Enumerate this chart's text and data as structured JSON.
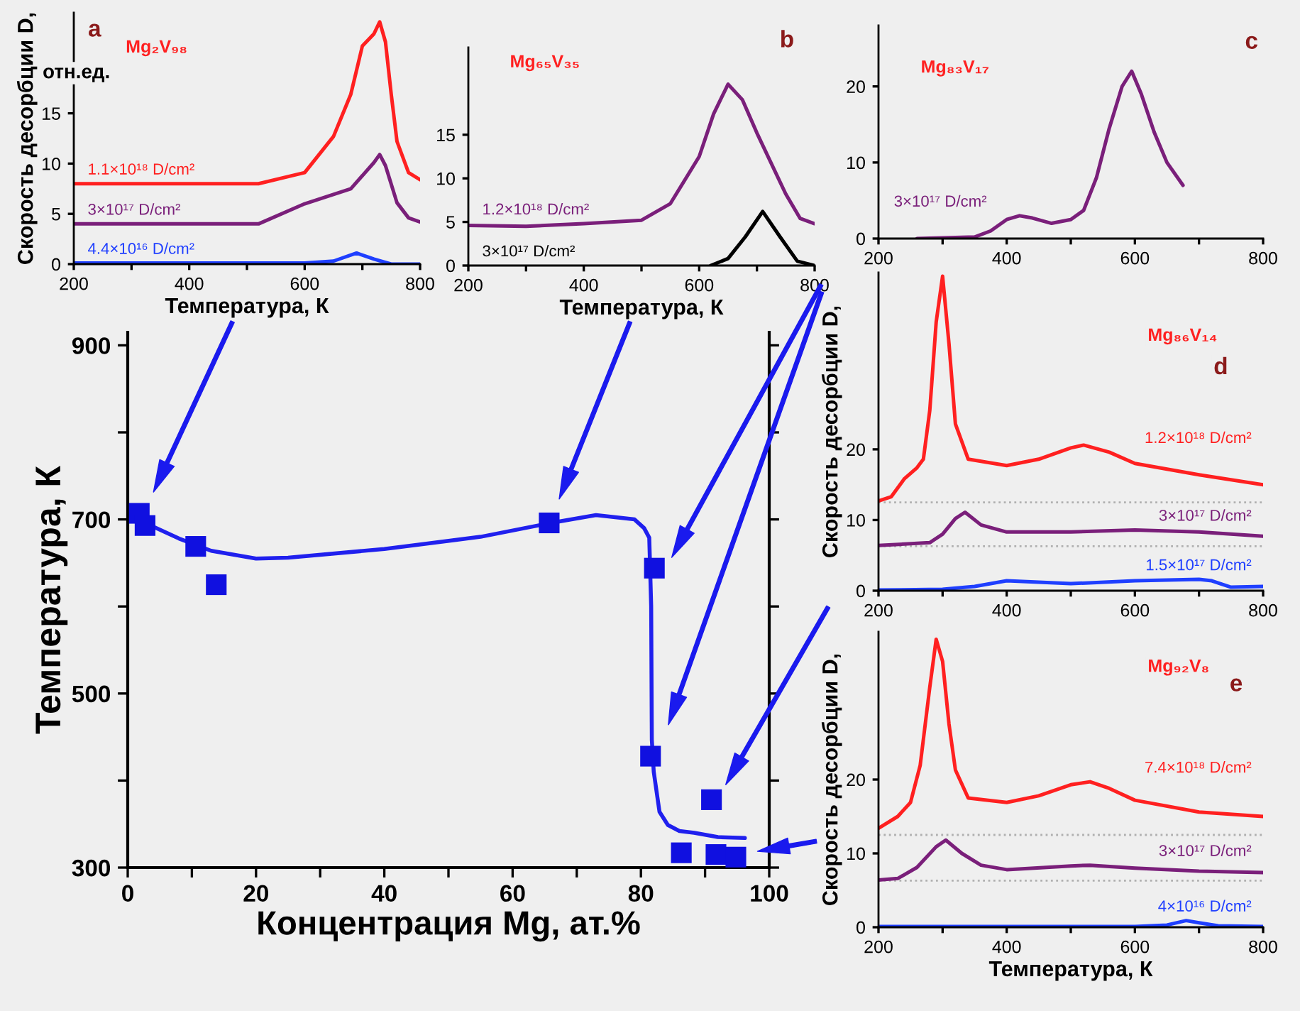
{
  "chart_data": [
    {
      "type": "line",
      "xlabel": "Температура, К",
      "ylabel": "Скорость десорбции D,",
      "annotations": [
        "a",
        "Mg₂V₉₈",
        "отн.ед."
      ],
      "xlim": [
        200,
        800
      ],
      "ylim": [
        0,
        25
      ],
      "xticks": [
        200,
        {
          "value": 300,
          "label": null
        },
        400,
        {
          "value": 500,
          "label": null
        },
        600,
        {
          "value": 700,
          "label": null
        },
        800
      ],
      "yticks": [
        0,
        5,
        10,
        15
      ],
      "series": [
        {
          "name": "1.1×10¹⁸ D/cm²",
          "color": "#ff2020",
          "x": [
            200,
            520,
            600,
            650,
            680,
            700,
            720,
            730,
            740,
            750,
            760,
            780,
            800
          ],
          "values": [
            8,
            8,
            9.1,
            12.7,
            16.9,
            21.7,
            22.9,
            24.1,
            22.1,
            16.9,
            12.2,
            9.1,
            8.4
          ]
        },
        {
          "name": "3×10¹⁷ D/cm²",
          "color": "#7a1f7a",
          "x": [
            200,
            520,
            600,
            680,
            720,
            730,
            740,
            760,
            780,
            800
          ],
          "values": [
            4,
            4,
            6,
            7.5,
            10.1,
            10.9,
            9.8,
            6.1,
            4.6,
            4.2
          ]
        },
        {
          "name": "4.4×10¹⁶ D/cm²",
          "color": "#1f3fff",
          "x": [
            200,
            600,
            650,
            690,
            720,
            750,
            800
          ],
          "values": [
            0.1,
            0.1,
            0.3,
            1.1,
            0.5,
            0,
            0
          ]
        }
      ]
    },
    {
      "type": "line",
      "xlabel": "Температура, К",
      "annotations": [
        "b",
        "Mg₆₅V₃₅"
      ],
      "xlim": [
        200,
        800
      ],
      "ylim": [
        0,
        25
      ],
      "xticks": [
        200,
        {
          "value": 300,
          "label": null
        },
        400,
        {
          "value": 500,
          "label": null
        },
        600,
        {
          "value": 700,
          "label": null
        },
        800
      ],
      "yticks": [
        0,
        5,
        10,
        15
      ],
      "series": [
        {
          "name": "1.2×10¹⁸ D/cm²",
          "color": "#7a1f7a",
          "x": [
            200,
            300,
            400,
            500,
            550,
            600,
            625,
            650,
            675,
            700,
            750,
            775,
            800
          ],
          "values": [
            4.6,
            4.5,
            4.8,
            5.2,
            7.1,
            12.5,
            17.4,
            20.8,
            19,
            15.2,
            8.2,
            5.4,
            4.8
          ]
        },
        {
          "name": "3×10¹⁷ D/cm²",
          "color": "#000000",
          "x": [
            620,
            650,
            680,
            710,
            740,
            770,
            800
          ],
          "values": [
            0,
            0.8,
            3.3,
            6.2,
            3.3,
            0.5,
            0
          ]
        }
      ]
    },
    {
      "type": "line",
      "annotations": [
        "c",
        "Mg₈₃V₁₇"
      ],
      "xlim": [
        200,
        800
      ],
      "ylim": [
        0,
        28
      ],
      "xticks": [
        200,
        {
          "value": 300,
          "label": null
        },
        400,
        {
          "value": 500,
          "label": null
        },
        600,
        {
          "value": 700,
          "label": null
        },
        800
      ],
      "yticks": [
        0,
        10,
        20
      ],
      "series": [
        {
          "name": "3×10¹⁷ D/cm²",
          "color": "#7a1f7a",
          "x": [
            260,
            350,
            375,
            400,
            420,
            440,
            470,
            500,
            520,
            540,
            560,
            580,
            595,
            610,
            630,
            650,
            675
          ],
          "values": [
            0,
            0.2,
            1,
            2.5,
            3,
            2.7,
            2,
            2.5,
            3.7,
            8,
            14.5,
            20,
            22,
            19,
            14,
            10,
            7
          ]
        }
      ]
    },
    {
      "type": "line",
      "ylabel": "Скорость десорбции D,",
      "annotations": [
        "d",
        "Mg₈₆V₁₄"
      ],
      "xlim": [
        200,
        800
      ],
      "ylim": [
        0,
        45
      ],
      "xticks": [
        200,
        {
          "value": 300,
          "label": null
        },
        400,
        {
          "value": 500,
          "label": null
        },
        600,
        {
          "value": 700,
          "label": null
        },
        800
      ],
      "yticks": [
        0,
        10,
        20
      ],
      "ref_lines": [
        {
          "axis": "y",
          "value": 12.5,
          "color": "#b0b0b0",
          "line_style": "dotted"
        },
        {
          "axis": "y",
          "value": 6.3,
          "color": "#b0b0b0",
          "line_style": "dotted"
        }
      ],
      "series": [
        {
          "name": "1.2×10¹⁸ D/cm²",
          "color": "#ff2020",
          "x": [
            200,
            220,
            240,
            260,
            270,
            280,
            290,
            300,
            310,
            320,
            340,
            400,
            450,
            500,
            520,
            560,
            600,
            700,
            800
          ],
          "values": [
            12.7,
            13.3,
            15.8,
            17.4,
            18.6,
            25.5,
            38,
            44.5,
            34.9,
            23.6,
            18.6,
            17.7,
            18.6,
            20.2,
            20.6,
            19.6,
            18,
            16.4,
            15
          ]
        },
        {
          "name": "3×10¹⁷ D/cm²",
          "color": "#7a1f7a",
          "x": [
            200,
            280,
            300,
            320,
            335,
            360,
            400,
            500,
            600,
            700,
            800
          ],
          "values": [
            6.4,
            6.8,
            8,
            10.2,
            11.1,
            9.3,
            8.3,
            8.3,
            8.6,
            8.3,
            7.7
          ]
        },
        {
          "name": "1.5×10¹⁷ D/cm²",
          "color": "#1f3fff",
          "x": [
            200,
            300,
            350,
            400,
            450,
            500,
            600,
            700,
            720,
            750,
            800
          ],
          "values": [
            0.1,
            0.2,
            0.6,
            1.4,
            1.2,
            1,
            1.4,
            1.6,
            1.4,
            0.5,
            0.6
          ]
        }
      ]
    },
    {
      "type": "scatter",
      "xlabel": "Концентрация Mg, ат.%",
      "ylabel": "Температура, К",
      "xlim": [
        0,
        100
      ],
      "ylim": [
        300,
        915
      ],
      "xticks": [
        0,
        {
          "value": 10,
          "label": null
        },
        20,
        {
          "value": 30,
          "label": null
        },
        40,
        {
          "value": 50,
          "label": null
        },
        60,
        {
          "value": 70,
          "label": null
        },
        80,
        {
          "value": 90,
          "label": null
        },
        100
      ],
      "yticks": [
        300,
        {
          "value": 400,
          "label": null
        },
        500,
        {
          "value": 600,
          "label": null
        },
        700,
        {
          "value": 800,
          "label": null
        },
        900
      ],
      "series": [
        {
          "type": "line",
          "color": "#2020ee",
          "x": [
            1.8,
            3,
            8,
            13,
            20,
            25,
            40,
            55,
            66,
            73,
            79,
            80.5,
            81.3,
            81.6,
            81.7,
            82,
            82.9,
            84.2,
            86,
            88.3,
            92,
            96.2
          ],
          "values": [
            707,
            695,
            678,
            664,
            655,
            656,
            666,
            680,
            696,
            705,
            700,
            690,
            679,
            600,
            447,
            410,
            364,
            349,
            342,
            340,
            335,
            334
          ]
        },
        {
          "type": "scatter",
          "marker": "square",
          "color": "#1010e0",
          "x": [
            1.8,
            2.7,
            10.6,
            13.8,
            65.7,
            82.1,
            81.5,
            86.3,
            91,
            91.7,
            94.8
          ],
          "values": [
            707,
            693,
            669,
            625,
            696,
            644,
            428,
            317,
            378,
            315,
            312
          ]
        }
      ]
    },
    {
      "type": "line",
      "xlabel": "Температура, К",
      "ylabel": "Скорость десорбции D,",
      "annotations": [
        "e",
        "Mg₉₂V₈"
      ],
      "xlim": [
        200,
        800
      ],
      "ylim": [
        0,
        40
      ],
      "xticks": [
        200,
        {
          "value": 300,
          "label": null
        },
        400,
        {
          "value": 500,
          "label": null
        },
        600,
        {
          "value": 700,
          "label": null
        },
        800
      ],
      "yticks": [
        0,
        10,
        20
      ],
      "ref_lines": [
        {
          "axis": "y",
          "value": 12.5,
          "color": "#b0b0b0",
          "line_style": "dotted"
        },
        {
          "axis": "y",
          "value": 6.3,
          "color": "#b0b0b0",
          "line_style": "dotted"
        }
      ],
      "series": [
        {
          "name": "7.4×10¹⁸ D/cm²",
          "color": "#ff2020",
          "x": [
            200,
            230,
            250,
            265,
            280,
            290,
            300,
            310,
            320,
            340,
            400,
            450,
            500,
            530,
            560,
            600,
            700,
            800
          ],
          "values": [
            13.4,
            15,
            16.9,
            21.9,
            32.5,
            39,
            36,
            27.5,
            21.3,
            17.5,
            16.9,
            17.8,
            19.3,
            19.7,
            18.8,
            17.2,
            15.6,
            15
          ]
        },
        {
          "name": "3×10¹⁷ D/cm²",
          "color": "#7a1f7a",
          "x": [
            200,
            230,
            260,
            290,
            305,
            330,
            360,
            400,
            500,
            530,
            600,
            700,
            800
          ],
          "values": [
            6.4,
            6.6,
            8.1,
            10.9,
            11.8,
            10,
            8.4,
            7.8,
            8.3,
            8.4,
            8,
            7.6,
            7.4
          ]
        },
        {
          "name": "4×10¹⁶ D/cm²",
          "color": "#1f3fff",
          "x": [
            200,
            600,
            650,
            680,
            700,
            730,
            800
          ],
          "values": [
            0.1,
            0.1,
            0.3,
            0.9,
            0.6,
            0.2,
            0.1
          ]
        }
      ]
    }
  ]
}
